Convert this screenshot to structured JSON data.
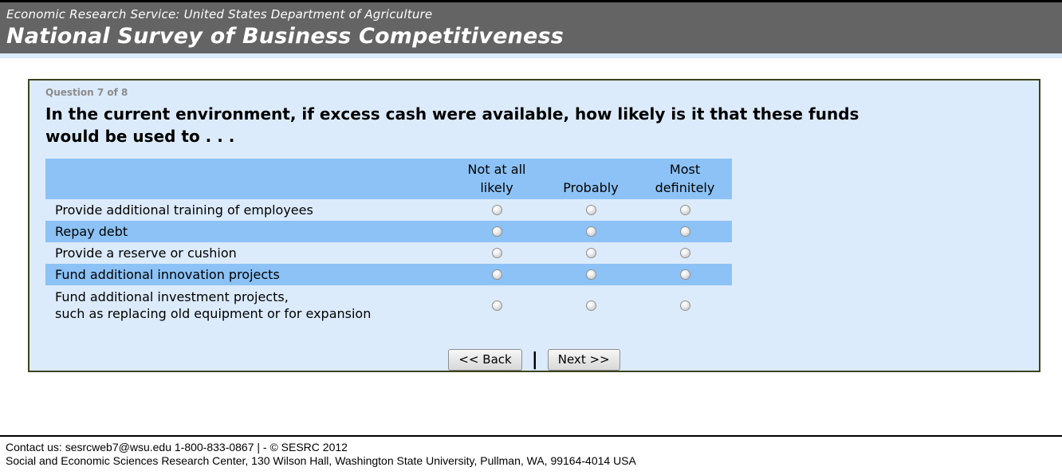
{
  "masthead": {
    "agency_line": "Economic Research Service: United States Department of Agriculture",
    "site_title": "National Survey of Business Competitiveness"
  },
  "question": {
    "progress": "Question 7 of 8",
    "text": "In the current environment, if excess cash were available, how likely is it that these funds\nwould be used to . . ."
  },
  "table": {
    "columns": [
      "Not at all\nlikely",
      "Probably",
      "Most\ndefinitely"
    ],
    "rows": [
      {
        "label": "Provide additional training of employees",
        "highlight": false
      },
      {
        "label": "Repay debt",
        "highlight": true
      },
      {
        "label": "Provide a reserve or cushion",
        "highlight": false
      },
      {
        "label": "Fund additional innovation projects",
        "highlight": true
      },
      {
        "label": "Fund additional investment projects,\nsuch as replacing old equipment or for expansion",
        "highlight": false
      }
    ]
  },
  "nav": {
    "back_label": "<< Back",
    "separator": "|",
    "next_label": "Next >>"
  },
  "footer": {
    "contact_line": "Contact us: sesrcweb7@wsu.edu 1-800-833-0867 | - © SESRC 2012",
    "address_line": "Social and Economic Sciences Research Center, 130 Wilson Hall, Washington State University, Pullman, WA, 99164-4014 USA"
  },
  "colors": {
    "masthead_gray": "#646464",
    "panel_background": "#dcebfb",
    "highlight_blue": "#8cc2f5",
    "panel_border": "#3b431f",
    "progress_gray": "#8c8c8c"
  }
}
